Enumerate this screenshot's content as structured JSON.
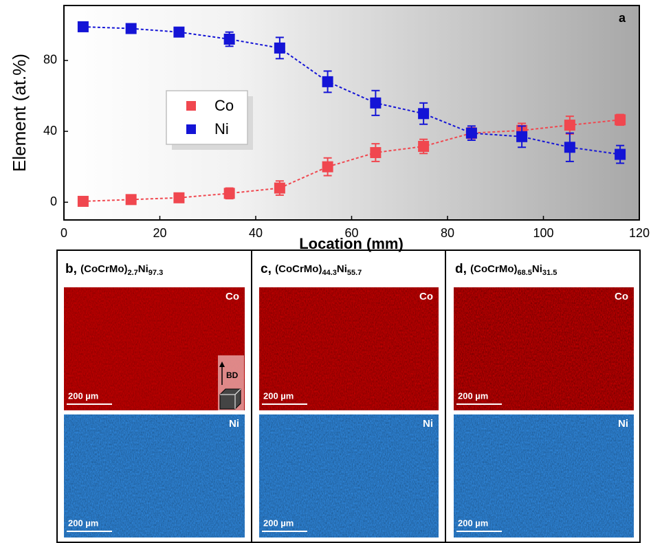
{
  "chart_data": {
    "type": "line",
    "panel_label": "a",
    "xlabel": "Location (mm)",
    "ylabel": "Element (at.%)",
    "x": [
      4,
      14,
      24,
      34.5,
      45,
      55,
      65,
      75,
      85,
      95.5,
      105.5,
      116
    ],
    "series": [
      {
        "name": "Co",
        "color": "#f0474f",
        "values": [
          0.5,
          1.5,
          2.5,
          5,
          8,
          20,
          28,
          31.5,
          39,
          40.5,
          43.5,
          46.5
        ],
        "errors": [
          1,
          1,
          1,
          3,
          4,
          5,
          5,
          4,
          3,
          4,
          5,
          3
        ]
      },
      {
        "name": "Ni",
        "color": "#1414d6",
        "values": [
          99,
          98,
          96,
          92,
          87,
          68,
          56,
          50,
          39,
          37,
          31,
          27
        ],
        "errors": [
          1,
          1,
          2,
          4,
          6,
          6,
          7,
          6,
          4,
          6,
          8,
          5
        ]
      }
    ],
    "xlim": [
      0,
      120
    ],
    "xticks": [
      0,
      20,
      40,
      60,
      80,
      100,
      120
    ],
    "ylim": [
      -10,
      111
    ],
    "yticks": [
      0,
      40,
      80
    ],
    "legend": "center-left"
  },
  "panels": [
    {
      "letter": "b,",
      "base": "(CoCrMo)",
      "sub1": "2.7",
      "element": "Ni",
      "sub2": "97.3",
      "top_map": "Co",
      "bottom_map": "Ni",
      "scale_top": "200 µm",
      "scale_bottom": "200 µm",
      "direction": "BD"
    },
    {
      "letter": "c,",
      "base": "(CoCrMo)",
      "sub1": "44.3",
      "element": "Ni",
      "sub2": "55.7",
      "top_map": "Co",
      "bottom_map": "Ni",
      "scale_top": "200 µm",
      "scale_bottom": "200 µm"
    },
    {
      "letter": "d,",
      "base": "(CoCrMo)",
      "sub1": "68.5",
      "element": "Ni",
      "sub2": "31.5",
      "top_map": "Co",
      "bottom_map": "Ni",
      "scale_top": "200 µm",
      "scale_bottom": "200 µm"
    }
  ]
}
